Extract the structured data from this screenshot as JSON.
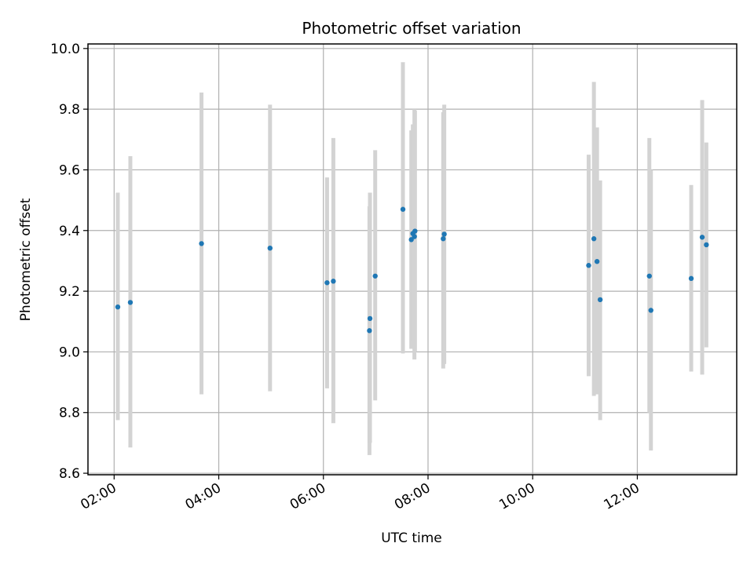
{
  "chart_data": {
    "type": "scatter",
    "title": "Photometric offset variation",
    "xlabel": "UTC time",
    "ylabel": "Photometric offset",
    "x_ticks": [
      "02:00",
      "04:00",
      "06:00",
      "08:00",
      "10:00",
      "12:00"
    ],
    "x_tick_hours": [
      2,
      4,
      6,
      8,
      10,
      12
    ],
    "xlim_hours": [
      1.5,
      13.9
    ],
    "y_ticks": [
      "8.6",
      "8.8",
      "9.0",
      "9.2",
      "9.4",
      "9.6",
      "9.8",
      "10.0"
    ],
    "y_tick_values": [
      8.6,
      8.8,
      9.0,
      9.2,
      9.4,
      9.6,
      9.8,
      10.0
    ],
    "ylim": [
      8.595,
      10.015
    ],
    "grid": true,
    "marker_color": "#1f77b4",
    "errorbar_color": "#d3d3d3",
    "points": [
      {
        "t": 2.07,
        "y": 9.148,
        "lo": 8.775,
        "hi": 9.525
      },
      {
        "t": 2.31,
        "y": 9.163,
        "lo": 8.685,
        "hi": 9.645
      },
      {
        "t": 3.67,
        "y": 9.357,
        "lo": 8.86,
        "hi": 9.855
      },
      {
        "t": 4.98,
        "y": 9.342,
        "lo": 8.87,
        "hi": 9.815
      },
      {
        "t": 6.07,
        "y": 9.228,
        "lo": 8.88,
        "hi": 9.575
      },
      {
        "t": 6.19,
        "y": 9.233,
        "lo": 8.765,
        "hi": 9.705
      },
      {
        "t": 6.88,
        "y": 9.07,
        "lo": 8.66,
        "hi": 9.48
      },
      {
        "t": 6.89,
        "y": 9.11,
        "lo": 8.7,
        "hi": 9.525
      },
      {
        "t": 6.99,
        "y": 9.25,
        "lo": 8.84,
        "hi": 9.665
      },
      {
        "t": 7.52,
        "y": 9.47,
        "lo": 8.995,
        "hi": 9.955
      },
      {
        "t": 7.68,
        "y": 9.37,
        "lo": 9.01,
        "hi": 9.73
      },
      {
        "t": 7.71,
        "y": 9.39,
        "lo": 9.035,
        "hi": 9.75
      },
      {
        "t": 7.74,
        "y": 9.38,
        "lo": 8.975,
        "hi": 9.8
      },
      {
        "t": 7.75,
        "y": 9.398,
        "lo": 9.0,
        "hi": 9.795
      },
      {
        "t": 8.29,
        "y": 9.373,
        "lo": 8.945,
        "hi": 9.79
      },
      {
        "t": 8.31,
        "y": 9.388,
        "lo": 8.96,
        "hi": 9.815
      },
      {
        "t": 11.07,
        "y": 9.285,
        "lo": 8.92,
        "hi": 9.65
      },
      {
        "t": 11.17,
        "y": 9.373,
        "lo": 8.855,
        "hi": 9.89
      },
      {
        "t": 11.23,
        "y": 9.298,
        "lo": 8.86,
        "hi": 9.74
      },
      {
        "t": 11.29,
        "y": 9.172,
        "lo": 8.775,
        "hi": 9.565
      },
      {
        "t": 12.23,
        "y": 9.25,
        "lo": 8.8,
        "hi": 9.705
      },
      {
        "t": 12.26,
        "y": 9.137,
        "lo": 8.675,
        "hi": 9.6
      },
      {
        "t": 13.03,
        "y": 9.242,
        "lo": 8.935,
        "hi": 9.55
      },
      {
        "t": 13.24,
        "y": 9.378,
        "lo": 8.925,
        "hi": 9.83
      },
      {
        "t": 13.32,
        "y": 9.353,
        "lo": 9.015,
        "hi": 9.69
      }
    ]
  }
}
